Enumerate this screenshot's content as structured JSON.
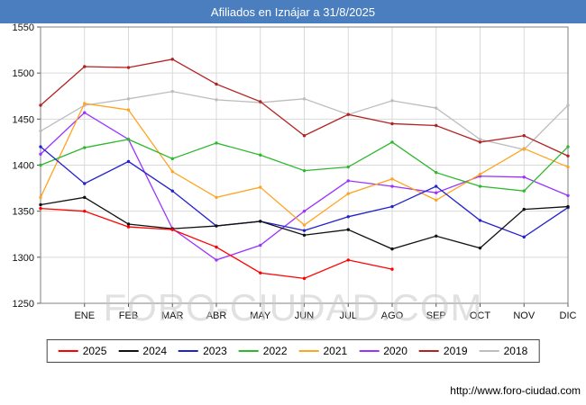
{
  "header": {
    "title": "Afiliados en Iznájar a 31/8/2025",
    "bg": "#4a7ebe"
  },
  "watermark": "FORO-CIUDAD.COM",
  "footer": {
    "url": "http://www.foro-ciudad.com"
  },
  "chart_data": {
    "type": "line",
    "title": "Afiliados en Iznájar a 31/8/2025",
    "x_labels": [
      "ENE",
      "FEB",
      "MAR",
      "ABR",
      "MAY",
      "JUN",
      "JUL",
      "AGO",
      "SEP",
      "OCT",
      "NOV",
      "DIC"
    ],
    "ylabel": "",
    "xlabel": "",
    "ylim": [
      1250,
      1550
    ],
    "yticks": [
      1250,
      1300,
      1350,
      1400,
      1450,
      1500,
      1550
    ],
    "grid": true,
    "legend_position": "bottom",
    "note": "13 points per series: value at left edge plus one per month tick ENE-DIC; 2025 ends at AGO",
    "series": [
      {
        "name": "2025",
        "color": "#ff0000",
        "values": [
          1353,
          1350,
          1333,
          1330,
          1311,
          1283,
          1277,
          1297,
          1287
        ]
      },
      {
        "name": "2024",
        "color": "#111111",
        "values": [
          1357,
          1365,
          1336,
          1331,
          1334,
          1339,
          1324,
          1330,
          1309,
          1323,
          1310,
          1352,
          1355
        ]
      },
      {
        "name": "2023",
        "color": "#2222cc",
        "values": [
          1420,
          1380,
          1404,
          1372,
          1334,
          1339,
          1329,
          1344,
          1355,
          1377,
          1340,
          1322,
          1354
        ]
      },
      {
        "name": "2022",
        "color": "#2eb82e",
        "values": [
          1400,
          1419,
          1428,
          1407,
          1424,
          1411,
          1394,
          1398,
          1425,
          1392,
          1377,
          1372,
          1420
        ]
      },
      {
        "name": "2021",
        "color": "#ffa420",
        "values": [
          1365,
          1467,
          1460,
          1393,
          1365,
          1376,
          1335,
          1369,
          1385,
          1362,
          1390,
          1418,
          1398
        ]
      },
      {
        "name": "2020",
        "color": "#9933ff",
        "values": [
          1412,
          1457,
          1428,
          1331,
          1297,
          1313,
          1350,
          1383,
          1377,
          1370,
          1388,
          1387,
          1367
        ]
      },
      {
        "name": "2019",
        "color": "#b22222",
        "values": [
          1465,
          1507,
          1506,
          1515,
          1488,
          1469,
          1432,
          1455,
          1445,
          1443,
          1425,
          1432,
          1410
        ]
      },
      {
        "name": "2018",
        "color": "#bdbdbd",
        "values": [
          1437,
          1465,
          1472,
          1480,
          1471,
          1468,
          1472,
          1455,
          1470,
          1462,
          1428,
          1417,
          1465
        ]
      }
    ]
  }
}
